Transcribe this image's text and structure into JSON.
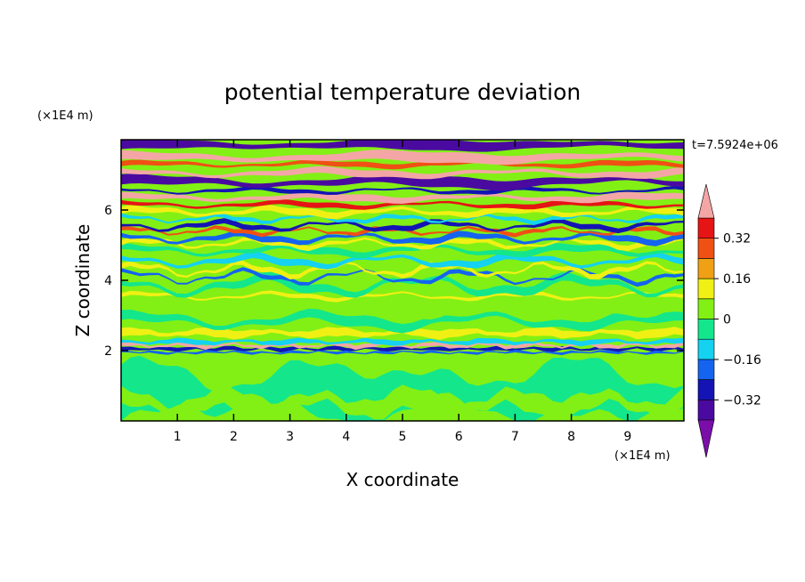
{
  "chart_data": {
    "type": "heatmap",
    "title": "potential temperature deviation",
    "xlabel": "X coordinate",
    "ylabel": "Z coordinate",
    "x_unit": "(×1E4 m)",
    "y_unit": "(×1E4 m)",
    "time_label": "t=7.5924e+06",
    "xlim": [
      0,
      10
    ],
    "ylim": [
      0,
      8
    ],
    "x_ticks": [
      1,
      2,
      3,
      4,
      5,
      6,
      7,
      8,
      9
    ],
    "y_ticks": [
      2,
      4,
      6
    ],
    "colorbar": {
      "levels": [
        -0.4,
        -0.32,
        -0.24,
        -0.16,
        -0.08,
        0,
        0.08,
        0.16,
        0.24,
        0.32,
        0.4
      ],
      "labels": [
        "0.32",
        "0.16",
        "0",
        "−0.16",
        "−0.32"
      ],
      "label_values": [
        0.32,
        0.16,
        0,
        -0.16,
        -0.32
      ],
      "extend": "both",
      "colors": [
        "#7a0ea8",
        "#4a0aa0",
        "#1414b4",
        "#1464f0",
        "#14d2f0",
        "#14e68c",
        "#82f014",
        "#f0f014",
        "#f0a014",
        "#f05014",
        "#e61414",
        "#f4a6a6"
      ]
    },
    "field_description_bands": [
      {
        "z_range": [
          7.6,
          8.0
        ],
        "level": "< -0.4 / > 0.4 alternating"
      },
      {
        "z_range": [
          5.0,
          7.6
        ],
        "level": "strong alternating layers"
      },
      {
        "z_range": [
          2.0,
          5.0
        ],
        "level": "-0.08 to 0.16"
      },
      {
        "z_range": [
          1.9,
          2.1
        ],
        "level": "sharp inversion"
      },
      {
        "z_range": [
          0.0,
          1.9
        ],
        "level": "0 to 0.08"
      }
    ]
  }
}
